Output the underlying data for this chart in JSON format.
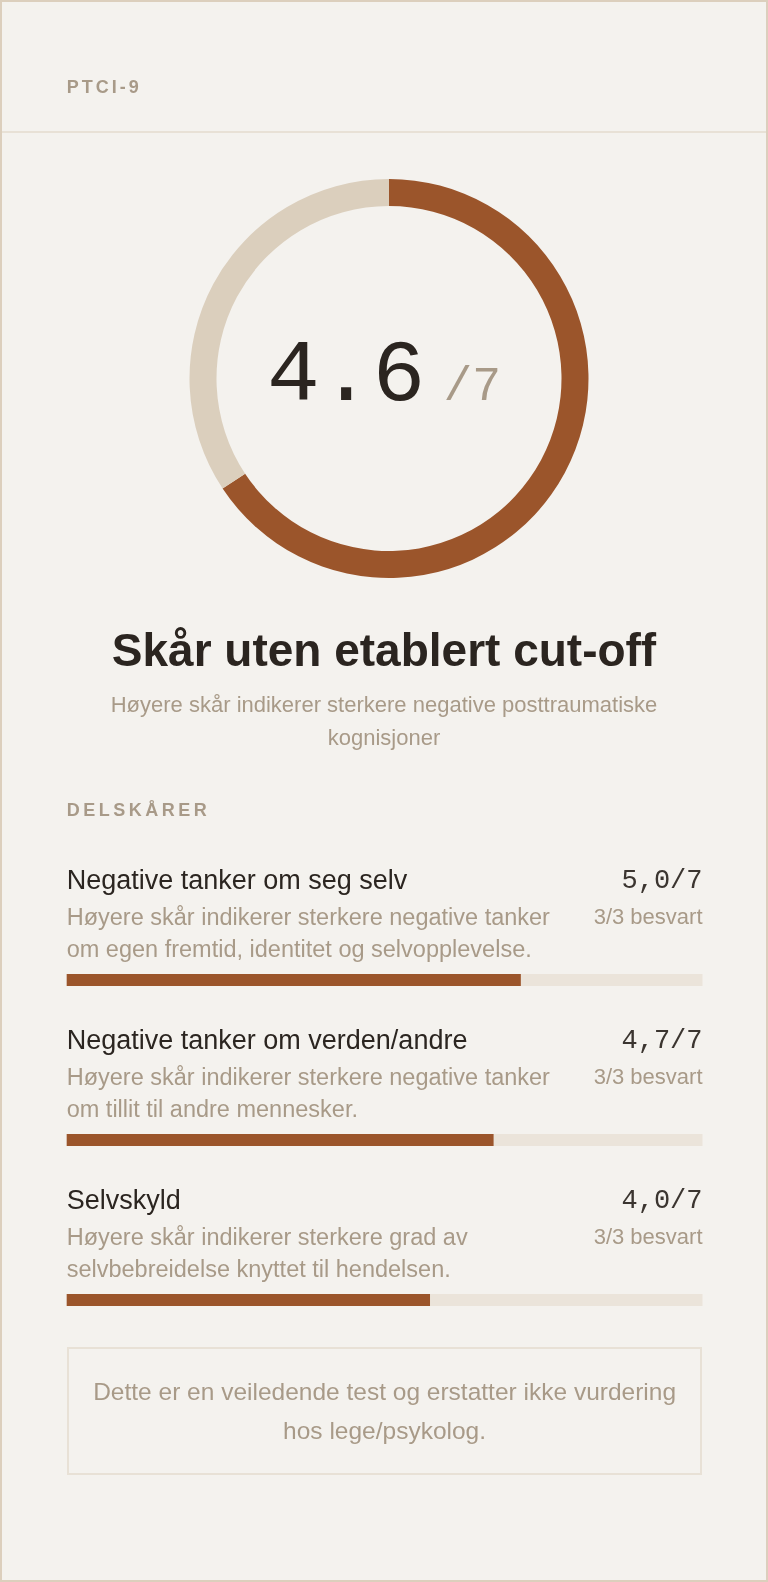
{
  "chart_data": [
    {
      "type": "donut",
      "title": "PTCI-9",
      "subtitle": "Skår uten etablert cut-off",
      "categories": [
        null,
        null
      ],
      "values": [
        65.7,
        34.3
      ],
      "colors": [
        "#9b552b",
        "#dbcfbd"
      ],
      "annotations": [
        "4.6",
        "/7",
        "Høyere skår indikerer sterkere negative posttraumatiske kognisjoner"
      ]
    },
    {
      "type": "bar",
      "orientation": "horizontal",
      "title": "DELSKÅRER",
      "categories": [
        "Negative tanker om seg selv",
        "Negative tanker om verden/andre",
        "Selvskyld"
      ],
      "values": [
        5.0,
        4.7,
        4.0
      ],
      "color": "#9b552b",
      "xlim": [
        0,
        7
      ],
      "tick_labels": "y",
      "value_labels": [
        "5,0/7",
        "4,7/7",
        "4,0/7"
      ],
      "annotations": [
        "Høyere skår indikerer sterkere negative tanker om egen fremtid, identitet og selvopplevelse.",
        "3/3 besvart",
        "Høyere skår indikerer sterkere negative tanker om tillit til andre mennesker.",
        "3/3 besvart",
        "Høyere skår indikerer sterkere grad av selvbebreidelse knyttet til hendelsen.",
        "3/3 besvart",
        "Dette er en veiledende test og erstatter ikke vurdering hos lege/psykolog."
      ]
    }
  ]
}
